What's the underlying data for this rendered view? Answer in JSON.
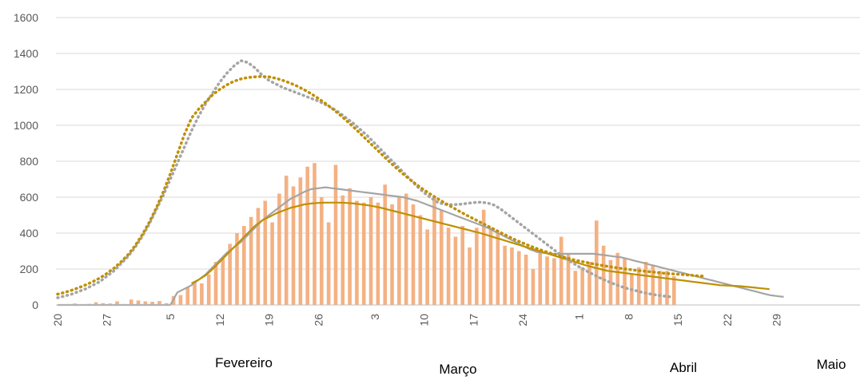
{
  "chart_data": {
    "type": "bar",
    "title": "",
    "xlabel": "",
    "ylabel": "",
    "ylim": [
      0,
      1600
    ],
    "yticks": [
      0,
      200,
      400,
      600,
      800,
      1000,
      1200,
      1400,
      1600
    ],
    "grid": "horizontal",
    "legend": "none",
    "x_tick_labels": [
      "20",
      "27",
      "5",
      "12",
      "19",
      "26",
      "3",
      "10",
      "17",
      "24",
      "1",
      "8",
      "15",
      "22",
      "29"
    ],
    "month_labels": [
      "Fevereiro",
      "Março",
      "Abril",
      "Maio"
    ],
    "bars": {
      "color": "#F4B183",
      "values": [
        2,
        5,
        8,
        4,
        6,
        15,
        10,
        8,
        20,
        5,
        30,
        25,
        20,
        18,
        22,
        10,
        50,
        55,
        100,
        130,
        120,
        170,
        240,
        260,
        340,
        400,
        440,
        490,
        540,
        580,
        460,
        620,
        720,
        660,
        710,
        770,
        790,
        600,
        460,
        780,
        610,
        650,
        580,
        570,
        600,
        570,
        670,
        560,
        600,
        620,
        560,
        500,
        420,
        600,
        530,
        430,
        380,
        440,
        320,
        430,
        530,
        430,
        400,
        330,
        320,
        300,
        280,
        200,
        290,
        270,
        260,
        380,
        280,
        190,
        210,
        240,
        470,
        330,
        250,
        290,
        260,
        170,
        210,
        240,
        220,
        190,
        190,
        160
      ]
    },
    "series": [
      {
        "style": "solid",
        "color": "#A5A5A5",
        "values": [
          0,
          0,
          0,
          0,
          0,
          0,
          0,
          0,
          0,
          0,
          0,
          0,
          0,
          0,
          0,
          0,
          0,
          70,
          90,
          110,
          140,
          170,
          210,
          250,
          290,
          320,
          350,
          390,
          430,
          470,
          500,
          530,
          560,
          590,
          610,
          630,
          645,
          650,
          655,
          650,
          645,
          640,
          635,
          630,
          625,
          620,
          615,
          610,
          605,
          600,
          590,
          580,
          565,
          550,
          535,
          520,
          505,
          490,
          475,
          460,
          445,
          430,
          410,
          390,
          370,
          350,
          330,
          310,
          295,
          290,
          285,
          285,
          285,
          285,
          285,
          285,
          285,
          280,
          275,
          270,
          265,
          255,
          245,
          235,
          225,
          215,
          205,
          195,
          185,
          175,
          165,
          155,
          145,
          135,
          125,
          115,
          105,
          95,
          85,
          75,
          65,
          55,
          50,
          45
        ]
      },
      {
        "style": "solid",
        "color": "#BF9000",
        "values": [
          null,
          null,
          null,
          null,
          null,
          null,
          null,
          null,
          null,
          null,
          null,
          null,
          null,
          null,
          null,
          null,
          null,
          null,
          null,
          120,
          140,
          165,
          200,
          240,
          280,
          320,
          360,
          400,
          440,
          470,
          490,
          510,
          525,
          540,
          550,
          560,
          565,
          568,
          570,
          570,
          570,
          568,
          565,
          560,
          555,
          548,
          540,
          530,
          520,
          510,
          500,
          490,
          480,
          470,
          460,
          450,
          440,
          430,
          420,
          410,
          400,
          388,
          376,
          364,
          352,
          340,
          328,
          316,
          304,
          292,
          280,
          268,
          256,
          244,
          232,
          220,
          210,
          200,
          190,
          185,
          180,
          175,
          170,
          165,
          160,
          155,
          150,
          145,
          140,
          135,
          130,
          125,
          120,
          115,
          110,
          108,
          106,
          104,
          100,
          96,
          92,
          88
        ]
      },
      {
        "style": "dotted",
        "color": "#A5A5A5",
        "values": [
          40,
          50,
          60,
          75,
          90,
          110,
          130,
          160,
          190,
          230,
          270,
          320,
          380,
          450,
          530,
          610,
          700,
          790,
          880,
          970,
          1050,
          1120,
          1180,
          1240,
          1290,
          1330,
          1360,
          1350,
          1320,
          1280,
          1250,
          1230,
          1210,
          1195,
          1180,
          1165,
          1150,
          1135,
          1115,
          1095,
          1070,
          1040,
          1010,
          975,
          940,
          900,
          860,
          820,
          780,
          740,
          700,
          660,
          625,
          595,
          570,
          560,
          558,
          560,
          565,
          570,
          572,
          568,
          555,
          530,
          500,
          470,
          440,
          410,
          380,
          350,
          320,
          290,
          262,
          236,
          212,
          190,
          170,
          150,
          132,
          116,
          102,
          90,
          80,
          70,
          62,
          55,
          50,
          45
        ]
      },
      {
        "style": "dotted",
        "color": "#BF9000",
        "values": [
          60,
          70,
          82,
          96,
          112,
          130,
          150,
          175,
          205,
          240,
          280,
          330,
          390,
          460,
          540,
          630,
          730,
          840,
          950,
          1040,
          1090,
          1130,
          1170,
          1200,
          1225,
          1245,
          1258,
          1266,
          1270,
          1272,
          1270,
          1262,
          1250,
          1235,
          1218,
          1198,
          1175,
          1150,
          1122,
          1092,
          1060,
          1026,
          990,
          952,
          914,
          876,
          838,
          800,
          764,
          730,
          698,
          668,
          640,
          614,
          590,
          566,
          544,
          522,
          500,
          480,
          460,
          440,
          420,
          400,
          380,
          362,
          345,
          329,
          314,
          300,
          287,
          275,
          264,
          254,
          245,
          237,
          229,
          222,
          215,
          209,
          203,
          198,
          193,
          189,
          185,
          181,
          177,
          174,
          171,
          168,
          165,
          162,
          160
        ]
      }
    ]
  }
}
